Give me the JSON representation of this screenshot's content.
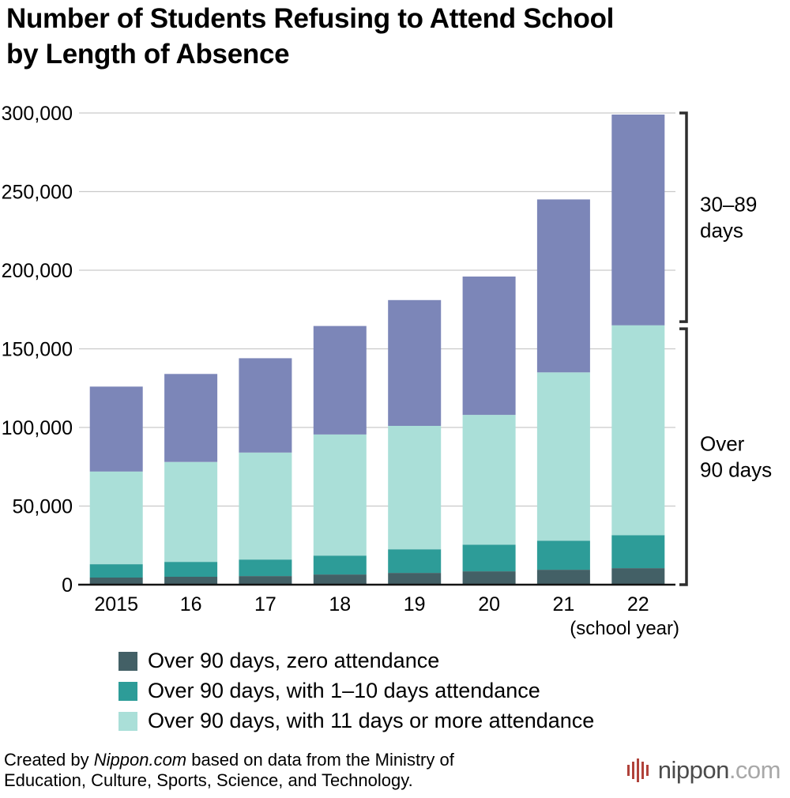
{
  "title_lines": [
    "Number of Students Refusing to Attend School",
    "by Length of Absence"
  ],
  "chart_data": {
    "type": "bar",
    "stacked": true,
    "title": "Number of Students Refusing to Attend School by Length of Absence",
    "categories": [
      "2015",
      "16",
      "17",
      "18",
      "19",
      "20",
      "21",
      "22"
    ],
    "x_axis_note": "(school year)",
    "ylim": [
      0,
      300000
    ],
    "ytick_interval": 50000,
    "ytick_labels": [
      "0",
      "50,000",
      "100,000",
      "150,000",
      "200,000",
      "250,000",
      "300,000"
    ],
    "grid": true,
    "legend_position": "bottom",
    "series": [
      {
        "name": "Over 90 days, zero attendance",
        "color": "#436066",
        "in_legend": true,
        "values": [
          4500,
          5000,
          5500,
          6500,
          7500,
          8500,
          9500,
          10500
        ]
      },
      {
        "name": "Over 90 days, with 1–10 days attendance",
        "color": "#2d9c98",
        "in_legend": true,
        "values": [
          8500,
          9500,
          10500,
          12000,
          15000,
          17000,
          18500,
          21000
        ]
      },
      {
        "name": "Over 90 days, with 11 days or more attendance",
        "color": "#aadfd8",
        "in_legend": true,
        "values": [
          59000,
          63500,
          68000,
          77000,
          78500,
          82500,
          107000,
          133500
        ]
      },
      {
        "name": "30–89 days",
        "color": "#7c86b8",
        "in_legend": false,
        "values": [
          54000,
          56000,
          60000,
          69000,
          80000,
          88000,
          110000,
          134000
        ]
      }
    ],
    "totals": [
      126000,
      134000,
      144000,
      164500,
      181000,
      196000,
      245000,
      299000
    ],
    "annotations": [
      {
        "label": "30–89 days",
        "label_lines": [
          "30–89",
          "days"
        ],
        "range": [
          165000,
          300000
        ]
      },
      {
        "label": "Over 90 days",
        "label_lines": [
          "Over",
          "90 days"
        ],
        "range": [
          0,
          165000
        ]
      }
    ]
  },
  "footer": {
    "credit_line1_prefix": "Created by ",
    "credit_source": "Nippon.com",
    "credit_line1_suffix": " based on data from the Ministry of",
    "credit_line2": "Education, Culture, Sports, Science, and Technology.",
    "logo_text": "nippon",
    "logo_suffix": ".com",
    "logo_bar_color": "#b0423a",
    "logo_text_color": "#4b4b4b",
    "logo_suffix_color": "#a8a8a8"
  }
}
